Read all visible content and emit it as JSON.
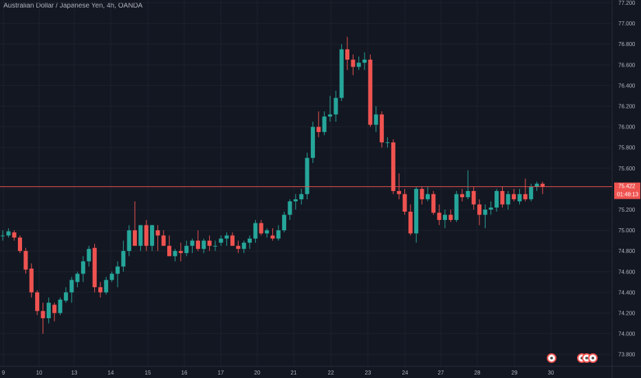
{
  "header": {
    "title": "Australian Dollar / Japanese Yen, 4h, OANDA"
  },
  "price_axis": {
    "labels": [
      "77.200",
      "77.000",
      "76.800",
      "76.600",
      "76.400",
      "76.200",
      "76.000",
      "75.800",
      "75.600",
      "75.400",
      "75.200",
      "75.000",
      "74.800",
      "74.600",
      "74.400",
      "74.200",
      "74.000",
      "73.800"
    ]
  },
  "time_axis": {
    "labels": [
      "9",
      "10",
      "13",
      "14",
      "15",
      "16",
      "17",
      "20",
      "21",
      "22",
      "23",
      "24",
      "27",
      "28",
      "29",
      "30"
    ]
  },
  "current_price": {
    "value": "75.422",
    "countdown": "01:48:13"
  },
  "colors": {
    "up": "#26a69a",
    "down": "#ef5350",
    "background": "#131722",
    "grid": "#1e222d",
    "price_line": "#ef5350"
  },
  "chart_data": {
    "type": "candlestick",
    "title": "Australian Dollar / Japanese Yen, 4h, OANDA",
    "xlabel": "",
    "ylabel": "",
    "ylim": [
      73.8,
      77.2
    ],
    "grid": true,
    "x_tick_labels": [
      "9",
      "10",
      "13",
      "14",
      "15",
      "16",
      "17",
      "20",
      "21",
      "22",
      "23",
      "24",
      "27",
      "28",
      "29",
      "30"
    ],
    "y_tick_labels": [
      "73.800",
      "74.000",
      "74.200",
      "74.400",
      "74.600",
      "74.800",
      "75.000",
      "75.200",
      "75.400",
      "75.600",
      "75.800",
      "76.000",
      "76.200",
      "76.400",
      "76.600",
      "76.800",
      "77.000",
      "77.200"
    ],
    "last_price": 75.422,
    "series": [
      {
        "name": "",
        "values": [
          [
            74.95,
            75.0,
            74.9,
            74.95
          ],
          [
            74.95,
            75.02,
            74.93,
            74.99
          ],
          [
            74.98,
            75.0,
            74.9,
            74.93
          ],
          [
            74.93,
            74.95,
            74.78,
            74.8
          ],
          [
            74.8,
            74.83,
            74.58,
            74.62
          ],
          [
            74.63,
            74.68,
            74.35,
            74.4
          ],
          [
            74.4,
            74.42,
            74.18,
            74.22
          ],
          [
            74.22,
            74.3,
            74.0,
            74.15
          ],
          [
            74.15,
            74.35,
            74.1,
            74.3
          ],
          [
            74.28,
            74.3,
            74.12,
            74.2
          ],
          [
            74.2,
            74.35,
            74.18,
            74.33
          ],
          [
            74.32,
            74.45,
            74.3,
            74.4
          ],
          [
            74.4,
            74.55,
            74.3,
            74.52
          ],
          [
            74.5,
            74.6,
            74.45,
            74.58
          ],
          [
            74.58,
            74.75,
            74.5,
            74.7
          ],
          [
            74.7,
            74.85,
            74.65,
            74.82
          ],
          [
            74.83,
            74.87,
            74.4,
            74.45
          ],
          [
            74.45,
            74.5,
            74.35,
            74.4
          ],
          [
            74.4,
            74.55,
            74.38,
            74.52
          ],
          [
            74.52,
            74.6,
            74.5,
            74.58
          ],
          [
            74.58,
            74.7,
            74.45,
            74.65
          ],
          [
            74.65,
            74.9,
            74.6,
            74.8
          ],
          [
            74.8,
            75.05,
            74.75,
            75.0
          ],
          [
            75.0,
            75.28,
            74.9,
            74.85
          ],
          [
            74.85,
            75.05,
            74.8,
            75.05
          ],
          [
            75.05,
            75.1,
            74.8,
            74.85
          ],
          [
            74.85,
            75.05,
            74.8,
            75.05
          ],
          [
            75.0,
            75.05,
            74.8,
            74.95
          ],
          [
            74.95,
            75.0,
            74.85,
            74.85
          ],
          [
            74.85,
            74.95,
            74.75,
            74.75
          ],
          [
            74.75,
            74.82,
            74.7,
            74.8
          ],
          [
            74.8,
            74.88,
            74.7,
            74.78
          ],
          [
            74.78,
            74.9,
            74.75,
            74.85
          ],
          [
            74.85,
            74.92,
            74.78,
            74.9
          ],
          [
            74.9,
            75.0,
            74.8,
            74.82
          ],
          [
            74.82,
            74.92,
            74.78,
            74.9
          ],
          [
            74.9,
            74.95,
            74.8,
            74.85
          ],
          [
            74.85,
            74.9,
            74.8,
            74.85
          ],
          [
            74.88,
            74.95,
            74.85,
            74.92
          ],
          [
            74.92,
            74.98,
            74.85,
            74.95
          ],
          [
            74.95,
            74.98,
            74.85,
            74.85
          ],
          [
            74.85,
            74.9,
            74.78,
            74.82
          ],
          [
            74.82,
            74.9,
            74.78,
            74.88
          ],
          [
            74.88,
            74.95,
            74.82,
            74.92
          ],
          [
            74.92,
            75.1,
            74.88,
            75.07
          ],
          [
            75.07,
            75.1,
            74.95,
            74.97
          ],
          [
            74.97,
            75.02,
            74.93,
            75.0
          ],
          [
            74.95,
            75.02,
            74.9,
            74.92
          ],
          [
            74.92,
            75.05,
            74.9,
            75.0
          ],
          [
            75.0,
            75.18,
            74.98,
            75.15
          ],
          [
            75.15,
            75.3,
            75.1,
            75.28
          ],
          [
            75.28,
            75.35,
            75.2,
            75.3
          ],
          [
            75.3,
            75.4,
            75.25,
            75.35
          ],
          [
            75.35,
            75.75,
            75.3,
            75.7
          ],
          [
            75.7,
            76.05,
            75.65,
            76.0
          ],
          [
            76.0,
            76.15,
            75.9,
            75.95
          ],
          [
            75.95,
            76.15,
            75.92,
            76.1
          ],
          [
            76.1,
            76.3,
            76.05,
            76.12
          ],
          [
            76.12,
            76.35,
            76.05,
            76.28
          ],
          [
            76.28,
            76.8,
            76.25,
            76.75
          ],
          [
            76.75,
            76.87,
            76.55,
            76.65
          ],
          [
            76.65,
            76.7,
            76.5,
            76.58
          ],
          [
            76.58,
            76.68,
            76.55,
            76.62
          ],
          [
            76.62,
            76.72,
            76.55,
            76.65
          ],
          [
            76.65,
            76.7,
            76.0,
            76.02
          ],
          [
            76.02,
            76.2,
            75.95,
            76.12
          ],
          [
            76.12,
            76.15,
            75.8,
            75.85
          ],
          [
            75.85,
            75.9,
            75.8,
            75.85
          ],
          [
            75.85,
            75.88,
            75.35,
            75.38
          ],
          [
            75.38,
            75.55,
            75.3,
            75.35
          ],
          [
            75.35,
            75.4,
            75.15,
            75.18
          ],
          [
            75.18,
            75.25,
            74.95,
            74.97
          ],
          [
            74.97,
            75.42,
            74.88,
            75.4
          ],
          [
            75.4,
            75.42,
            75.25,
            75.3
          ],
          [
            75.3,
            75.42,
            75.28,
            75.35
          ],
          [
            75.35,
            75.38,
            75.15,
            75.17
          ],
          [
            75.17,
            75.25,
            75.05,
            75.1
          ],
          [
            75.1,
            75.2,
            75.02,
            75.15
          ],
          [
            75.15,
            75.2,
            75.08,
            75.1
          ],
          [
            75.1,
            75.38,
            75.08,
            75.35
          ],
          [
            75.35,
            75.4,
            75.28,
            75.32
          ],
          [
            75.32,
            75.58,
            75.3,
            75.38
          ],
          [
            75.38,
            75.42,
            75.2,
            75.25
          ],
          [
            75.25,
            75.3,
            75.05,
            75.15
          ],
          [
            75.15,
            75.25,
            75.02,
            75.2
          ],
          [
            75.2,
            75.28,
            75.15,
            75.22
          ],
          [
            75.22,
            75.4,
            75.18,
            75.38
          ],
          [
            75.38,
            75.42,
            75.22,
            75.25
          ],
          [
            75.25,
            75.38,
            75.2,
            75.35
          ],
          [
            75.35,
            75.4,
            75.28,
            75.3
          ],
          [
            75.28,
            75.4,
            75.25,
            75.35
          ],
          [
            75.35,
            75.5,
            75.28,
            75.3
          ],
          [
            75.3,
            75.45,
            75.28,
            75.42
          ],
          [
            75.42,
            75.47,
            75.38,
            75.45
          ],
          [
            75.45,
            75.47,
            75.35,
            75.42
          ]
        ]
      }
    ]
  }
}
